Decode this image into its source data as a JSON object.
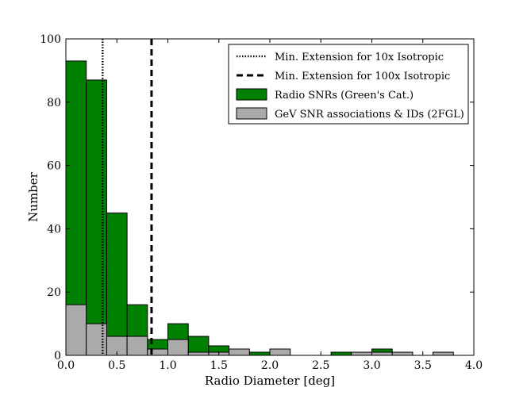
{
  "chart_data": {
    "type": "bar",
    "xlabel": "Radio Diameter [deg]",
    "ylabel": "Number",
    "xlim": [
      0.0,
      4.0
    ],
    "ylim": [
      0,
      100
    ],
    "xticks": [
      "0.0",
      "0.5",
      "1.0",
      "1.5",
      "2.0",
      "2.5",
      "3.0",
      "3.5",
      "4.0"
    ],
    "yticks": [
      "0",
      "20",
      "40",
      "60",
      "80",
      "100"
    ],
    "bin_width": 0.2,
    "series": [
      {
        "name": "Radio SNRs (Green's Cat.)",
        "color": "#008000",
        "bins": [
          {
            "x": 0.0,
            "value": 93
          },
          {
            "x": 0.2,
            "value": 87
          },
          {
            "x": 0.4,
            "value": 45
          },
          {
            "x": 0.6,
            "value": 16
          },
          {
            "x": 0.8,
            "value": 5
          },
          {
            "x": 1.0,
            "value": 10
          },
          {
            "x": 1.2,
            "value": 6
          },
          {
            "x": 1.4,
            "value": 3
          },
          {
            "x": 1.6,
            "value": 1
          },
          {
            "x": 1.8,
            "value": 1
          },
          {
            "x": 2.6,
            "value": 1
          },
          {
            "x": 3.0,
            "value": 2
          }
        ]
      },
      {
        "name": "GeV SNR associations & IDs (2FGL)",
        "color": "#aaaaaa",
        "bins": [
          {
            "x": 0.0,
            "value": 16
          },
          {
            "x": 0.2,
            "value": 10
          },
          {
            "x": 0.4,
            "value": 6
          },
          {
            "x": 0.6,
            "value": 6
          },
          {
            "x": 0.8,
            "value": 2
          },
          {
            "x": 1.0,
            "value": 5
          },
          {
            "x": 1.2,
            "value": 1
          },
          {
            "x": 1.4,
            "value": 1
          },
          {
            "x": 1.6,
            "value": 2
          },
          {
            "x": 2.0,
            "value": 2
          },
          {
            "x": 2.8,
            "value": 1
          },
          {
            "x": 3.0,
            "value": 1
          },
          {
            "x": 3.2,
            "value": 1
          },
          {
            "x": 3.6,
            "value": 1
          }
        ]
      }
    ],
    "vlines": [
      {
        "name": "Min. Extension for 10x Isotropic",
        "x": 0.36,
        "style": "dotted"
      },
      {
        "name": "Min. Extension for 100x Isotropic",
        "x": 0.84,
        "style": "dashed"
      }
    ],
    "legend": {
      "placement": "top-right",
      "entries": [
        {
          "label": "Min. Extension for 10x Isotropic",
          "kind": "dotted"
        },
        {
          "label": "Min. Extension for 100x Isotropic",
          "kind": "dashed"
        },
        {
          "label": "Radio SNRs (Green's Cat.)",
          "kind": "patch",
          "color": "#008000"
        },
        {
          "label": "GeV SNR associations & IDs (2FGL)",
          "kind": "patch",
          "color": "#aaaaaa"
        }
      ]
    }
  }
}
